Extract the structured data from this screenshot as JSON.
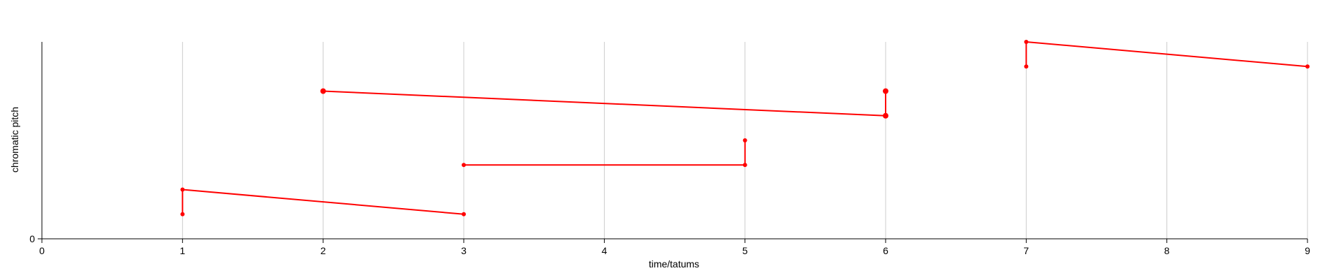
{
  "chart_data": {
    "type": "line",
    "title": "",
    "xlabel": "time/tatums",
    "ylabel": "chromatic pitch",
    "xlim": [
      0,
      9
    ],
    "ylim": [
      0,
      8
    ],
    "x_ticks": [
      0,
      1,
      2,
      3,
      4,
      5,
      6,
      7,
      8,
      9
    ],
    "x_tick_labels": [
      "0",
      "1",
      "2",
      "3",
      "4",
      "5",
      "6",
      "7",
      "8",
      "9"
    ],
    "y_ticks": [
      0
    ],
    "y_tick_labels": [
      "0"
    ],
    "grid": "vertical",
    "legend": "none",
    "colors": {
      "series": "#ff0000",
      "grid": "#cccccc",
      "axis": "#000000"
    },
    "series": [
      {
        "segments": [
          {
            "points": [
              [
                1,
                1
              ],
              [
                1,
                2
              ],
              [
                3,
                1
              ]
            ]
          }
        ]
      },
      {
        "segments": [
          {
            "points": [
              [
                3,
                3
              ],
              [
                5,
                3
              ],
              [
                5,
                4
              ]
            ]
          }
        ]
      },
      {
        "segments": [
          {
            "points": [
              [
                2,
                6
              ],
              [
                6,
                5
              ],
              [
                6,
                6
              ]
            ],
            "large_markers": true
          }
        ]
      },
      {
        "segments": [
          {
            "points": [
              [
                7,
                7
              ],
              [
                7,
                8
              ],
              [
                9,
                7
              ]
            ]
          }
        ]
      }
    ]
  }
}
